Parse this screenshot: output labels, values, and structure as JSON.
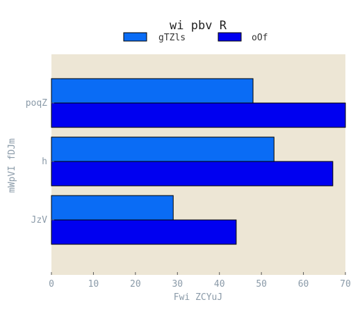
{
  "chart_data": {
    "type": "bar",
    "orientation": "horizontal",
    "title": "wi  pbv R",
    "xlabel": "Fwi ZCYuJ",
    "ylabel": "mWpVI fDJm",
    "categories": [
      "poqZ",
      "h",
      "JzV"
    ],
    "series": [
      {
        "name": "gTZls",
        "values": [
          48,
          53,
          29
        ],
        "color": "#0a6cf5"
      },
      {
        "name": "oOf",
        "values": [
          70,
          67,
          44
        ],
        "color": "#0000f0"
      }
    ],
    "xlim": [
      0,
      70
    ],
    "xticks": [
      "0",
      "10",
      "20",
      "30",
      "40",
      "50",
      "60",
      "70"
    ],
    "grid": false,
    "legend_position": "top-center",
    "plot_background": "#ede6d5"
  }
}
